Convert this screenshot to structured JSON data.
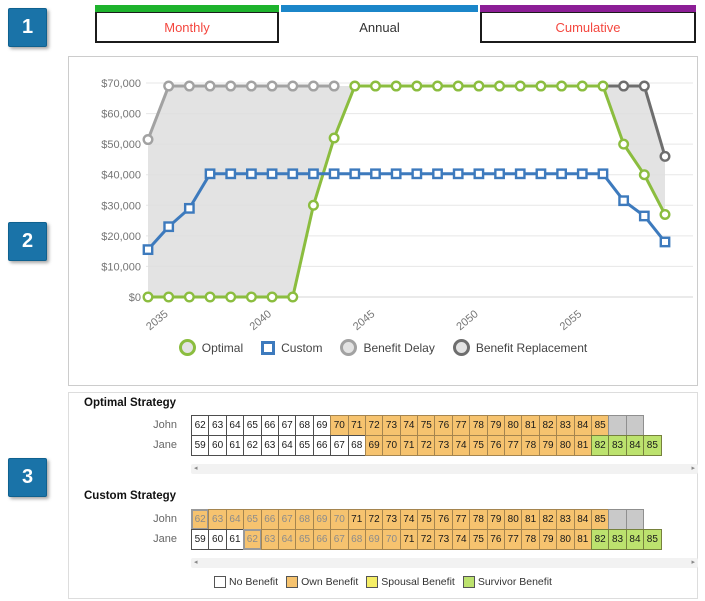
{
  "annotations": {
    "badge1": "1",
    "badge2": "2",
    "badge3": "3"
  },
  "tabs": [
    {
      "label": "Monthly",
      "accent": "#1eb32d",
      "text_color": "#f4473f",
      "active": false
    },
    {
      "label": "Annual",
      "accent": "#1b86c9",
      "text_color": "#333333",
      "active": true
    },
    {
      "label": "Cumulative",
      "accent": "#8c1e96",
      "text_color": "#f4473f",
      "active": false
    }
  ],
  "chart_data": {
    "type": "line",
    "x": [
      2034,
      2035,
      2036,
      2037,
      2038,
      2039,
      2040,
      2041,
      2042,
      2043,
      2044,
      2045,
      2046,
      2047,
      2048,
      2049,
      2050,
      2051,
      2052,
      2053,
      2054,
      2055,
      2056,
      2057,
      2058,
      2059
    ],
    "series": [
      {
        "name": "Optimal",
        "color": "#8bbd3f",
        "marker": "circle",
        "values": [
          0,
          0,
          0,
          0,
          0,
          0,
          0,
          0,
          30000,
          52000,
          69000,
          69000,
          69000,
          69000,
          69000,
          69000,
          69000,
          69000,
          69000,
          69000,
          69000,
          69000,
          69000,
          50000,
          40000,
          27000
        ]
      },
      {
        "name": "Custom",
        "color": "#3d7abd",
        "marker": "square",
        "values": [
          15500,
          23000,
          29000,
          40300,
          40300,
          40300,
          40300,
          40300,
          40300,
          40300,
          40300,
          40300,
          40300,
          40300,
          40300,
          40300,
          40300,
          40300,
          40300,
          40300,
          40300,
          40300,
          40300,
          31500,
          26500,
          18000
        ]
      },
      {
        "name": "Benefit Delay",
        "color": "#a2a2a2",
        "marker": "circle",
        "values": [
          51500,
          69000,
          69000,
          69000,
          69000,
          69000,
          69000,
          69000,
          69000,
          69000,
          null,
          null,
          null,
          null,
          null,
          null,
          null,
          null,
          null,
          null,
          null,
          null,
          null,
          null,
          null,
          null
        ]
      },
      {
        "name": "Benefit Replacement",
        "color": "#6e6e6e",
        "marker": "circle",
        "leading_point": [
          2056,
          69000
        ],
        "values": [
          null,
          null,
          null,
          null,
          null,
          null,
          null,
          null,
          null,
          null,
          null,
          null,
          null,
          null,
          null,
          null,
          null,
          null,
          null,
          null,
          null,
          null,
          null,
          69000,
          69000,
          46000
        ]
      }
    ],
    "shaded_regions": [
      {
        "fill": "#dedede",
        "opacity": 0.85,
        "points": [
          [
            2034,
            0
          ],
          [
            2034,
            51500
          ],
          [
            2035,
            69000
          ],
          [
            2043,
            69000
          ],
          [
            2044,
            69000
          ],
          [
            2043,
            52000
          ],
          [
            2042,
            30000
          ],
          [
            2041,
            0
          ]
        ]
      },
      {
        "fill": "#dedede",
        "opacity": 0.85,
        "points": [
          [
            2056,
            69000
          ],
          [
            2058,
            69000
          ],
          [
            2059,
            46000
          ],
          [
            2059,
            27000
          ],
          [
            2058,
            40000
          ],
          [
            2057,
            50000
          ]
        ]
      }
    ],
    "ylim": [
      0,
      70000
    ],
    "ytick_labels": [
      "$0",
      "$10,000",
      "$20,000",
      "$30,000",
      "$40,000",
      "$50,000",
      "$60,000",
      "$70,000"
    ],
    "xticks": [
      "2035",
      "2040",
      "2045",
      "2050",
      "2055"
    ],
    "grid": true,
    "legend_position": "bottom",
    "axis_text_color": "#757575",
    "grid_color": "#e7e7e7"
  },
  "strategies": [
    {
      "title": "Optimal Strategy",
      "rows": [
        {
          "name": "John",
          "cells": [
            {
              "a": "62",
              "t": "none"
            },
            {
              "a": "63",
              "t": "none"
            },
            {
              "a": "64",
              "t": "none"
            },
            {
              "a": "65",
              "t": "none"
            },
            {
              "a": "66",
              "t": "none"
            },
            {
              "a": "67",
              "t": "none"
            },
            {
              "a": "68",
              "t": "none"
            },
            {
              "a": "69",
              "t": "none"
            },
            {
              "a": "70",
              "t": "own"
            },
            {
              "a": "71",
              "t": "own"
            },
            {
              "a": "72",
              "t": "own"
            },
            {
              "a": "73",
              "t": "own"
            },
            {
              "a": "74",
              "t": "own"
            },
            {
              "a": "75",
              "t": "own"
            },
            {
              "a": "76",
              "t": "own"
            },
            {
              "a": "77",
              "t": "own"
            },
            {
              "a": "78",
              "t": "own"
            },
            {
              "a": "79",
              "t": "own"
            },
            {
              "a": "80",
              "t": "own"
            },
            {
              "a": "81",
              "t": "own"
            },
            {
              "a": "82",
              "t": "own"
            },
            {
              "a": "83",
              "t": "own"
            },
            {
              "a": "84",
              "t": "own"
            },
            {
              "a": "85",
              "t": "own"
            },
            {
              "t": "filler"
            },
            {
              "t": "filler"
            }
          ]
        },
        {
          "name": "Jane",
          "cells": [
            {
              "a": "59",
              "t": "none"
            },
            {
              "a": "60",
              "t": "none"
            },
            {
              "a": "61",
              "t": "none"
            },
            {
              "a": "62",
              "t": "none"
            },
            {
              "a": "63",
              "t": "none"
            },
            {
              "a": "64",
              "t": "none"
            },
            {
              "a": "65",
              "t": "none"
            },
            {
              "a": "66",
              "t": "none"
            },
            {
              "a": "67",
              "t": "none"
            },
            {
              "a": "68",
              "t": "none"
            },
            {
              "a": "69",
              "t": "own"
            },
            {
              "a": "70",
              "t": "own"
            },
            {
              "a": "71",
              "t": "own"
            },
            {
              "a": "72",
              "t": "own"
            },
            {
              "a": "73",
              "t": "own"
            },
            {
              "a": "74",
              "t": "own"
            },
            {
              "a": "75",
              "t": "own"
            },
            {
              "a": "76",
              "t": "own"
            },
            {
              "a": "77",
              "t": "own"
            },
            {
              "a": "78",
              "t": "own"
            },
            {
              "a": "79",
              "t": "own"
            },
            {
              "a": "80",
              "t": "own"
            },
            {
              "a": "81",
              "t": "own"
            },
            {
              "a": "82",
              "t": "surv"
            },
            {
              "a": "83",
              "t": "surv"
            },
            {
              "a": "84",
              "t": "surv"
            },
            {
              "a": "85",
              "t": "surv"
            }
          ]
        }
      ]
    },
    {
      "title": "Custom Strategy",
      "rows": [
        {
          "name": "John",
          "cells": [
            {
              "a": "62",
              "t": "own",
              "m": true,
              "s": true
            },
            {
              "a": "63",
              "t": "own",
              "m": true
            },
            {
              "a": "64",
              "t": "own",
              "m": true
            },
            {
              "a": "65",
              "t": "own",
              "m": true
            },
            {
              "a": "66",
              "t": "own",
              "m": true
            },
            {
              "a": "67",
              "t": "own",
              "m": true
            },
            {
              "a": "68",
              "t": "own",
              "m": true
            },
            {
              "a": "69",
              "t": "own",
              "m": true
            },
            {
              "a": "70",
              "t": "own",
              "m": true
            },
            {
              "a": "71",
              "t": "own"
            },
            {
              "a": "72",
              "t": "own"
            },
            {
              "a": "73",
              "t": "own"
            },
            {
              "a": "74",
              "t": "own"
            },
            {
              "a": "75",
              "t": "own"
            },
            {
              "a": "76",
              "t": "own"
            },
            {
              "a": "77",
              "t": "own"
            },
            {
              "a": "78",
              "t": "own"
            },
            {
              "a": "79",
              "t": "own"
            },
            {
              "a": "80",
              "t": "own"
            },
            {
              "a": "81",
              "t": "own"
            },
            {
              "a": "82",
              "t": "own"
            },
            {
              "a": "83",
              "t": "own"
            },
            {
              "a": "84",
              "t": "own"
            },
            {
              "a": "85",
              "t": "own"
            },
            {
              "t": "filler"
            },
            {
              "t": "filler"
            }
          ]
        },
        {
          "name": "Jane",
          "cells": [
            {
              "a": "59",
              "t": "none"
            },
            {
              "a": "60",
              "t": "none"
            },
            {
              "a": "61",
              "t": "none"
            },
            {
              "a": "62",
              "t": "own",
              "m": true,
              "s": true
            },
            {
              "a": "63",
              "t": "own",
              "m": true
            },
            {
              "a": "64",
              "t": "own",
              "m": true
            },
            {
              "a": "65",
              "t": "own",
              "m": true
            },
            {
              "a": "66",
              "t": "own",
              "m": true
            },
            {
              "a": "67",
              "t": "own",
              "m": true
            },
            {
              "a": "68",
              "t": "own",
              "m": true
            },
            {
              "a": "69",
              "t": "own",
              "m": true
            },
            {
              "a": "70",
              "t": "own",
              "m": true
            },
            {
              "a": "71",
              "t": "own"
            },
            {
              "a": "72",
              "t": "own"
            },
            {
              "a": "73",
              "t": "own"
            },
            {
              "a": "74",
              "t": "own"
            },
            {
              "a": "75",
              "t": "own"
            },
            {
              "a": "76",
              "t": "own"
            },
            {
              "a": "77",
              "t": "own"
            },
            {
              "a": "78",
              "t": "own"
            },
            {
              "a": "79",
              "t": "own"
            },
            {
              "a": "80",
              "t": "own"
            },
            {
              "a": "81",
              "t": "own"
            },
            {
              "a": "82",
              "t": "surv"
            },
            {
              "a": "83",
              "t": "surv"
            },
            {
              "a": "84",
              "t": "surv"
            },
            {
              "a": "85",
              "t": "surv"
            }
          ]
        }
      ]
    }
  ],
  "benefit_legend": [
    {
      "label": "No Benefit",
      "color": "#ffffff"
    },
    {
      "label": "Own Benefit",
      "color": "#f6c36f"
    },
    {
      "label": "Spousal Benefit",
      "color": "#f5ee66"
    },
    {
      "label": "Survivor Benefit",
      "color": "#bce26e"
    }
  ]
}
